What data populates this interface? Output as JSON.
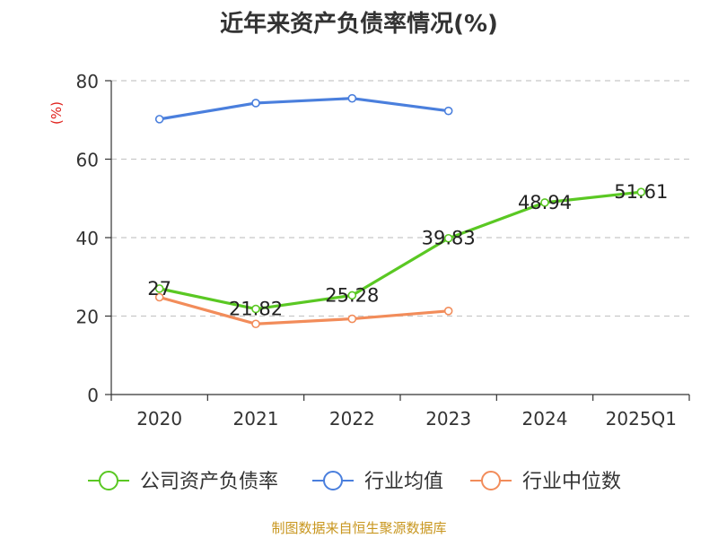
{
  "chart_data": {
    "type": "line",
    "title": "近年来资产负债率情况(%)",
    "ylabel": "(%)",
    "xlabel": "",
    "categories": [
      "2020",
      "2021",
      "2022",
      "2023",
      "2024",
      "2025Q1"
    ],
    "ylim": [
      0,
      80
    ],
    "yticks": [
      0,
      20,
      40,
      60,
      80
    ],
    "grid": "horizontal-dashed",
    "legend_position": "bottom",
    "series": [
      {
        "name": "公司资产负债率",
        "color": "#5ac823",
        "values": [
          27,
          21.82,
          25.28,
          39.83,
          48.94,
          51.61
        ],
        "labels": [
          "27",
          "21.82",
          "25.28",
          "39.83",
          "48.94",
          "51.61"
        ]
      },
      {
        "name": "行业均值",
        "color": "#4a7fdd",
        "values": [
          70.2,
          74.3,
          75.5,
          72.3,
          null,
          null
        ]
      },
      {
        "name": "行业中位数",
        "color": "#f28c5a",
        "values": [
          24.8,
          18.0,
          19.3,
          21.3,
          null,
          null
        ]
      }
    ]
  },
  "footer": "制图数据来自恒生聚源数据库"
}
